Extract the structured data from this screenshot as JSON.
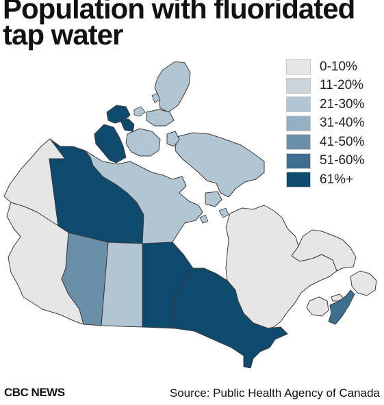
{
  "title": "Population with fluoridated tap water",
  "legend": [
    {
      "label": "0-10%",
      "color": "#e6e6e6"
    },
    {
      "label": "11-20%",
      "color": "#cdd5db"
    },
    {
      "label": "21-30%",
      "color": "#b2c5d3"
    },
    {
      "label": "31-40%",
      "color": "#94afc2"
    },
    {
      "label": "41-50%",
      "color": "#6b8fa9"
    },
    {
      "label": "51-60%",
      "color": "#3e6e90"
    },
    {
      "label": "61%+",
      "color": "#0d4a6e"
    }
  ],
  "regions": [
    {
      "name": "British Columbia",
      "category": "0-10%"
    },
    {
      "name": "Yukon",
      "category": "0-10%"
    },
    {
      "name": "Northwest Territories",
      "category": "61%+"
    },
    {
      "name": "Nunavut",
      "category": "21-30%"
    },
    {
      "name": "Alberta",
      "category": "41-50%"
    },
    {
      "name": "Saskatchewan",
      "category": "21-30%"
    },
    {
      "name": "Manitoba",
      "category": "61%+"
    },
    {
      "name": "Ontario",
      "category": "61%+"
    },
    {
      "name": "Quebec",
      "category": "0-10%"
    },
    {
      "name": "Newfoundland and Labrador",
      "category": "0-10%"
    },
    {
      "name": "New Brunswick",
      "category": "0-10%"
    },
    {
      "name": "Nova Scotia",
      "category": "51-60%"
    },
    {
      "name": "Prince Edward Island",
      "category": "0-10%"
    }
  ],
  "footer": {
    "brand": "CBC NEWS",
    "source": "Source: Public Health Agency of Canada"
  }
}
